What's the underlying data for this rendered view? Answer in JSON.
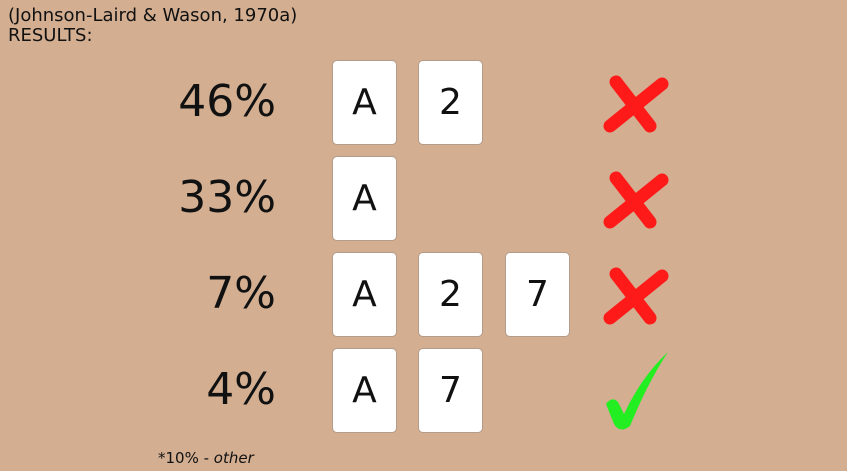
{
  "header": {
    "citation": "(Johnson-Laird & Wason, 1970a)",
    "label": "RESULTS:"
  },
  "rows": [
    {
      "percent": "46%",
      "cards": [
        "A",
        "2"
      ],
      "result": "incorrect"
    },
    {
      "percent": "33%",
      "cards": [
        "A"
      ],
      "result": "incorrect"
    },
    {
      "percent": "7%",
      "cards": [
        "A",
        "2",
        "7"
      ],
      "result": "incorrect"
    },
    {
      "percent": "4%",
      "cards": [
        "A",
        "7"
      ],
      "result": "correct"
    }
  ],
  "footnote": {
    "prefix": "*10% - ",
    "suffix": "other"
  },
  "colors": {
    "background": "#d3ae90",
    "cross": "#ff1a1a",
    "check": "#22ee22"
  }
}
